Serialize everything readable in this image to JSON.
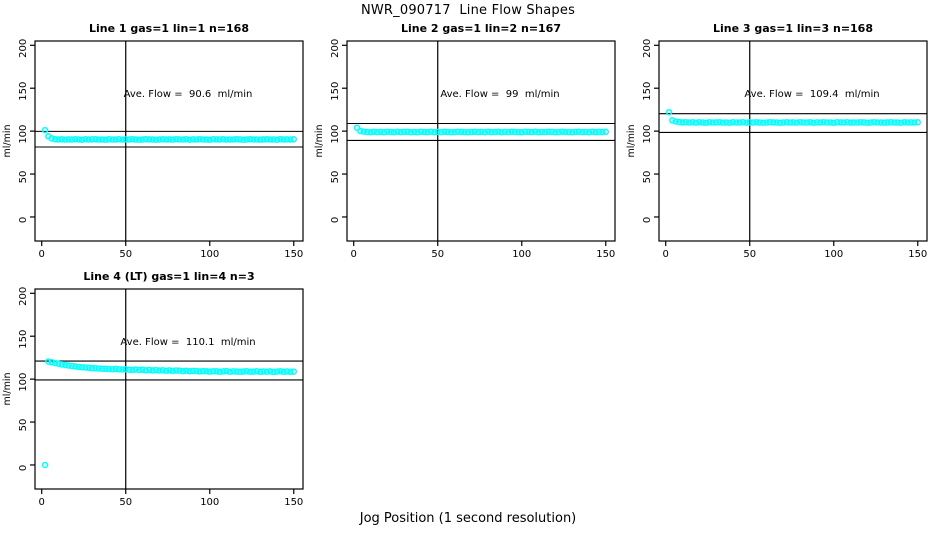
{
  "figure": {
    "title": "NWR_090717  Line Flow Shapes",
    "xlabel": "Jog Position (1 second resolution)",
    "background_color": "#ffffff",
    "point_color": "#00ffff",
    "axis_color": "#000000"
  },
  "chart_data": {
    "type": "scatter",
    "title": "NWR_090717  Line Flow Shapes",
    "xlabel": "Jog Position (1 second resolution)",
    "ylabel": "ml/min",
    "legend": "none",
    "grid": false,
    "x_ticks": [
      0,
      50,
      100,
      150
    ],
    "y_ticks": [
      0,
      50,
      100,
      150,
      200
    ],
    "xlim": [
      -4,
      155.5
    ],
    "ylim": [
      -28,
      205
    ],
    "vline_x": 50,
    "panels": [
      {
        "title": "Line 1 gas=1 lin=1 n=168",
        "ave_label": "Ave. Flow =  90.6  ml/min",
        "ave_flow": 90.6,
        "n": 168,
        "ref_line_high": 99.7,
        "ref_line_low": 81.5,
        "x_start": 2,
        "x_step": 2,
        "y": [
          101.2,
          94.0,
          91.5,
          90.6,
          90.2,
          90.5,
          90.1,
          90.4,
          90.2,
          90.6,
          90.3,
          90.0,
          90.5,
          90.2,
          90.4,
          90.6,
          90.1,
          90.3,
          90.0,
          90.5,
          90.3,
          90.2,
          90.6,
          90.1,
          90.4,
          90.2,
          90.5,
          90.3,
          90.0,
          90.2,
          90.6,
          90.4,
          90.2,
          90.0,
          90.3,
          90.5,
          90.2,
          90.4,
          90.1,
          90.6,
          90.2,
          90.3,
          90.5,
          90.0,
          90.4,
          90.2,
          90.6,
          90.3,
          90.2,
          90.0,
          90.5,
          90.4,
          90.2,
          90.6,
          90.1,
          90.3,
          90.2,
          90.5,
          90.4,
          90.0,
          90.2,
          90.6,
          90.3,
          90.2,
          90.1,
          90.4,
          90.5,
          90.2,
          90.3,
          90.0,
          90.6,
          90.2,
          90.4,
          90.3,
          90.5
        ]
      },
      {
        "title": "Line 2 gas=1 lin=2 n=167",
        "ave_label": "Ave. Flow =  99  ml/min",
        "ave_flow": 99,
        "n": 167,
        "ref_line_high": 108.9,
        "ref_line_low": 89.1,
        "x_start": 2,
        "x_step": 2,
        "y": [
          104.0,
          100.2,
          99.4,
          99.0,
          98.8,
          99.2,
          98.9,
          99.1,
          98.8,
          99.3,
          99.0,
          98.7,
          99.2,
          98.9,
          99.1,
          99.3,
          98.8,
          99.0,
          98.7,
          99.2,
          99.0,
          98.9,
          99.3,
          98.8,
          99.1,
          98.9,
          99.2,
          99.0,
          98.7,
          98.9,
          99.3,
          99.1,
          98.9,
          98.7,
          99.0,
          99.2,
          98.9,
          99.1,
          98.8,
          99.3,
          98.9,
          99.0,
          99.2,
          98.7,
          99.1,
          98.9,
          99.3,
          99.0,
          98.9,
          98.7,
          99.2,
          99.1,
          98.9,
          99.3,
          98.8,
          99.0,
          98.9,
          99.2,
          99.1,
          98.7,
          98.9,
          99.3,
          99.0,
          98.9,
          98.8,
          99.1,
          99.2,
          98.9,
          99.0,
          98.7,
          99.3,
          98.9,
          99.1,
          99.0,
          99.2
        ]
      },
      {
        "title": "Line 3 gas=1 lin=3 n=168",
        "ave_label": "Ave. Flow =  109.4  ml/min",
        "ave_flow": 109.4,
        "n": 168,
        "ref_line_high": 120.3,
        "ref_line_low": 98.5,
        "x_start": 2,
        "x_step": 2,
        "y": [
          122.0,
          112.5,
          111.2,
          110.6,
          110.2,
          110.4,
          110.0,
          110.3,
          109.9,
          110.4,
          110.1,
          109.8,
          110.3,
          110.0,
          110.2,
          110.4,
          109.9,
          110.1,
          109.8,
          110.3,
          110.1,
          110.0,
          110.4,
          109.9,
          110.2,
          110.0,
          110.3,
          110.1,
          109.8,
          110.0,
          110.4,
          110.2,
          110.0,
          109.8,
          110.1,
          110.3,
          110.0,
          110.2,
          109.9,
          110.4,
          110.0,
          110.1,
          110.3,
          109.8,
          110.2,
          110.0,
          110.4,
          110.1,
          110.0,
          109.8,
          110.3,
          110.2,
          110.0,
          110.4,
          109.9,
          110.1,
          110.0,
          110.3,
          110.2,
          109.8,
          110.0,
          110.4,
          110.1,
          110.0,
          109.9,
          110.2,
          110.3,
          110.0,
          110.1,
          109.8,
          110.4,
          110.0,
          110.2,
          110.1,
          110.3
        ]
      },
      {
        "title": "Line 4 (LT) gas=1 lin=4 n=3",
        "ave_label": "Ave. Flow =  110.1  ml/min",
        "ave_flow": 110.1,
        "n": 3,
        "ref_line_high": 121.1,
        "ref_line_low": 99.1,
        "x_start": 2,
        "x_step": 2,
        "y": [
          0.0,
          120.5,
          119.6,
          118.8,
          118.0,
          117.2,
          116.5,
          115.9,
          115.3,
          114.8,
          114.3,
          113.9,
          113.6,
          113.2,
          112.9,
          112.7,
          112.4,
          112.2,
          112.0,
          111.8,
          111.6,
          111.9,
          111.4,
          111.2,
          111.5,
          111.0,
          110.8,
          111.2,
          110.6,
          110.9,
          110.4,
          110.7,
          110.2,
          110.5,
          110.0,
          110.3,
          109.8,
          110.2,
          109.6,
          110.0,
          109.9,
          109.4,
          109.8,
          109.2,
          109.6,
          109.5,
          109.0,
          109.4,
          109.2,
          108.8,
          109.2,
          109.1,
          108.7,
          109.0,
          109.4,
          108.6,
          109.0,
          108.9,
          108.5,
          108.9,
          109.2,
          108.6,
          108.8,
          109.1,
          108.5,
          108.9,
          108.7,
          109.0,
          108.4,
          108.8,
          109.1,
          108.6,
          108.9,
          108.5,
          108.8
        ]
      }
    ]
  }
}
